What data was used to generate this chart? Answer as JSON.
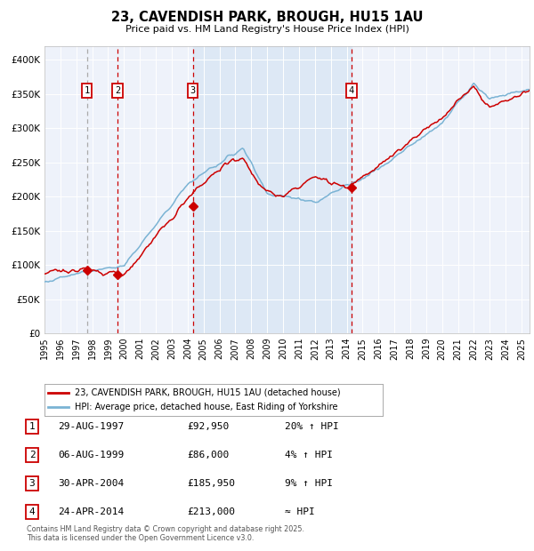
{
  "title_line1": "23, CAVENDISH PARK, BROUGH, HU15 1AU",
  "title_line2": "Price paid vs. HM Land Registry's House Price Index (HPI)",
  "sale_dates_decimal": [
    1997.66,
    1999.59,
    2004.33,
    2014.31
  ],
  "sale_prices": [
    92950,
    86000,
    185950,
    213000
  ],
  "sale_labels": [
    "1",
    "2",
    "3",
    "4"
  ],
  "legend_entries": [
    "23, CAVENDISH PARK, BROUGH, HU15 1AU (detached house)",
    "HPI: Average price, detached house, East Riding of Yorkshire"
  ],
  "table_rows": [
    [
      "1",
      "29-AUG-1997",
      "£92,950",
      "20% ↑ HPI"
    ],
    [
      "2",
      "06-AUG-1999",
      "£86,000",
      "4% ↑ HPI"
    ],
    [
      "3",
      "30-APR-2004",
      "£185,950",
      "9% ↑ HPI"
    ],
    [
      "4",
      "24-APR-2014",
      "£213,000",
      "≈ HPI"
    ]
  ],
  "footer_text": "Contains HM Land Registry data © Crown copyright and database right 2025.\nThis data is licensed under the Open Government Licence v3.0.",
  "hpi_color": "#7ab3d4",
  "price_color": "#cc0000",
  "bg_shaded_color": "#dde8f5",
  "ylim": [
    0,
    420000
  ],
  "yticks": [
    0,
    50000,
    100000,
    150000,
    200000,
    250000,
    300000,
    350000,
    400000
  ],
  "xlim_start": 1995,
  "xlim_end": 2025.5,
  "background_color": "#ffffff",
  "plot_bg_color": "#eef2fa"
}
